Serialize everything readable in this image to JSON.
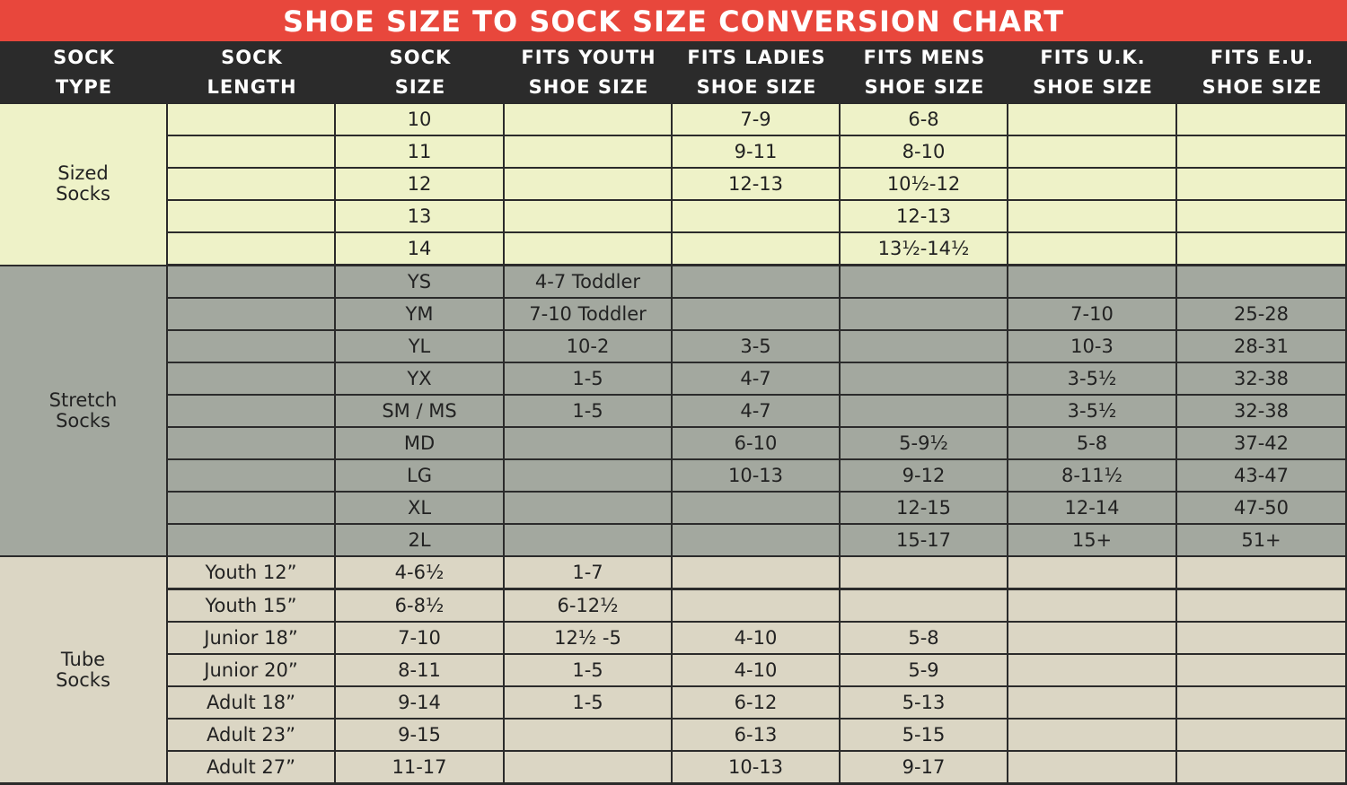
{
  "title": "SHOE SIZE TO SOCK SIZE CONVERSION CHART",
  "colors": {
    "title_bg": "#e8473c",
    "header_bg": "#2b2b2b",
    "sized_bg": "#eef2c8",
    "stretch_bg": "#a3a89f",
    "tube_bg": "#dbd6c4"
  },
  "columns": [
    {
      "line1": "SOCK",
      "line2": "TYPE"
    },
    {
      "line1": "SOCK",
      "line2": "LENGTH"
    },
    {
      "line1": "SOCK",
      "line2": "SIZE"
    },
    {
      "line1": "FITS YOUTH",
      "line2": "SHOE SIZE"
    },
    {
      "line1": "FITS LADIES",
      "line2": "SHOE SIZE"
    },
    {
      "line1": "FITS MENS",
      "line2": "SHOE SIZE"
    },
    {
      "line1": "FITS U.K.",
      "line2": "SHOE SIZE"
    },
    {
      "line1": "FITS E.U.",
      "line2": "SHOE SIZE"
    }
  ],
  "groups": [
    {
      "type": "Sized\nSocks",
      "rows": [
        [
          "",
          "10",
          "",
          "7-9",
          "6-8",
          "",
          ""
        ],
        [
          "",
          "11",
          "",
          "9-11",
          "8-10",
          "",
          ""
        ],
        [
          "",
          "12",
          "",
          "12-13",
          "10½-12",
          "",
          ""
        ],
        [
          "",
          "13",
          "",
          "",
          "12-13",
          "",
          ""
        ],
        [
          "",
          "14",
          "",
          "",
          "13½-14½",
          "",
          ""
        ]
      ]
    },
    {
      "type": "Stretch\nSocks",
      "rows": [
        [
          "",
          "YS",
          "4-7 Toddler",
          "",
          "",
          "",
          ""
        ],
        [
          "",
          "YM",
          "7-10 Toddler",
          "",
          "",
          "7-10",
          "25-28"
        ],
        [
          "",
          "YL",
          "10-2",
          "3-5",
          "",
          "10-3",
          "28-31"
        ],
        [
          "",
          "YX",
          "1-5",
          "4-7",
          "",
          "3-5½",
          "32-38"
        ],
        [
          "",
          "SM / MS",
          "1-5",
          "4-7",
          "",
          "3-5½",
          "32-38"
        ],
        [
          "",
          "MD",
          "",
          "6-10",
          "5-9½",
          "5-8",
          "37-42"
        ],
        [
          "",
          "LG",
          "",
          "10-13",
          "9-12",
          "8-11½",
          "43-47"
        ],
        [
          "",
          "XL",
          "",
          "",
          "12-15",
          "12-14",
          "47-50"
        ],
        [
          "",
          "2L",
          "",
          "",
          "15-17",
          "15+",
          "51+"
        ]
      ]
    },
    {
      "type": "Tube\nSocks",
      "rows": [
        [
          "Youth 12”",
          "4-6½",
          "1-7",
          "",
          "",
          "",
          ""
        ],
        [
          "Youth 15”",
          "6-8½",
          "6-12½",
          "",
          "",
          "",
          ""
        ],
        [
          "Junior 18”",
          "7-10",
          "12½ -5",
          "4-10",
          "5-8",
          "",
          ""
        ],
        [
          "Junior 20”",
          "8-11",
          "1-5",
          "4-10",
          "5-9",
          "",
          ""
        ],
        [
          "Adult 18”",
          "9-14",
          "1-5",
          "6-12",
          "5-13",
          "",
          ""
        ],
        [
          "Adult 23”",
          "9-15",
          "",
          "6-13",
          "5-15",
          "",
          ""
        ],
        [
          "Adult  27”",
          "11-17",
          "",
          "10-13",
          "9-17",
          "",
          ""
        ]
      ]
    }
  ]
}
